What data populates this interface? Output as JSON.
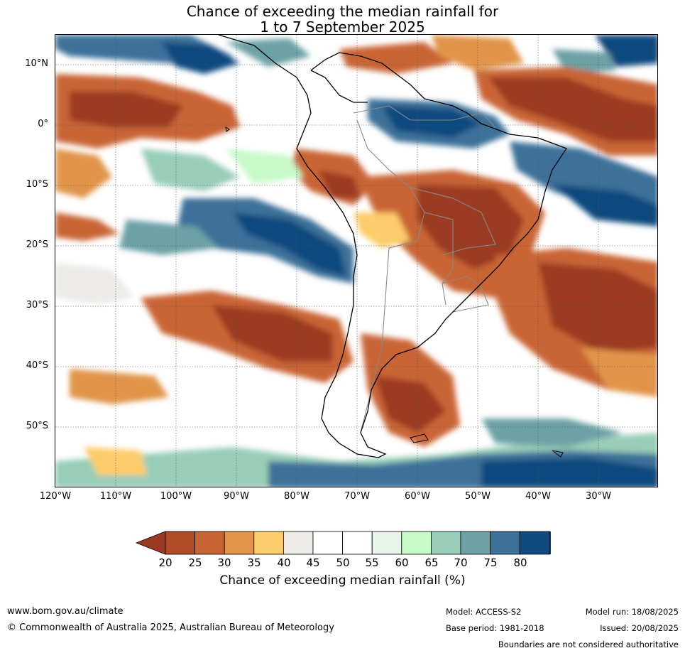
{
  "title_line1": "Chance of exceeding the median rainfall for",
  "title_line2": "1 to 7 September 2025",
  "map": {
    "region": "South America",
    "lon_range": [
      -120,
      -20
    ],
    "lat_range": [
      -60,
      15
    ],
    "lat_labels": [
      "10°N",
      "0°",
      "10°S",
      "20°S",
      "30°S",
      "40°S",
      "50°S"
    ],
    "lon_labels": [
      "120°W",
      "110°W",
      "100°W",
      "90°W",
      "80°W",
      "70°W",
      "60°W",
      "50°W",
      "40°W",
      "30°W"
    ],
    "gridlines": "dotted"
  },
  "colorbar": {
    "ticks": [
      "20",
      "25",
      "30",
      "35",
      "40",
      "45",
      "50",
      "55",
      "60",
      "65",
      "70",
      "75",
      "80"
    ],
    "colors": [
      "#9b3a22",
      "#b04a27",
      "#c96535",
      "#e1944a",
      "#fdcc6a",
      "#ecebe7",
      "#ffffff",
      "#ffffff",
      "#e8f5e8",
      "#c7f9c9",
      "#98ceb8",
      "#6ca1a6",
      "#3e7199",
      "#104a7f",
      "#0d4178"
    ],
    "label": "Chance of exceeding median rainfall (%)"
  },
  "footer": {
    "website": "www.bom.gov.au/climate",
    "copyright": "© Commonwealth of Australia 2025, Australian Bureau of Meteorology",
    "model": "Model: ACCESS-S2",
    "base_period": "Base period: 1981-2018",
    "model_run": "Model run: 18/08/2025",
    "issued": "Issued: 20/08/2025",
    "disclaimer": "Boundaries are not considered authoritative"
  }
}
